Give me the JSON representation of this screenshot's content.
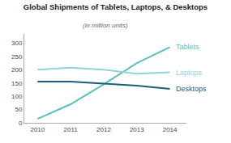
{
  "chart_data": {
    "type": "line",
    "title": "Global Shipments of Tablets, Laptops, & Desktops",
    "subtitle": "(in million units)",
    "x": [
      2010,
      2011,
      2012,
      2013,
      2014
    ],
    "series": [
      {
        "name": "Tablets",
        "color": "#5abfbf",
        "values": [
          15,
          70,
          145,
          225,
          285
        ]
      },
      {
        "name": "Laptops",
        "color": "#93d3d8",
        "values": [
          200,
          208,
          200,
          185,
          190
        ]
      },
      {
        "name": "Desktops",
        "color": "#1a5f7a",
        "values": [
          155,
          155,
          148,
          140,
          128
        ]
      }
    ],
    "xlim": [
      2009.6,
      2014.5
    ],
    "xticks": [
      2010,
      2011,
      2012,
      2013,
      2014
    ],
    "ylim": [
      0,
      335
    ],
    "yticks": [
      0,
      50,
      100,
      150,
      200,
      250,
      300
    ],
    "grid": false
  }
}
